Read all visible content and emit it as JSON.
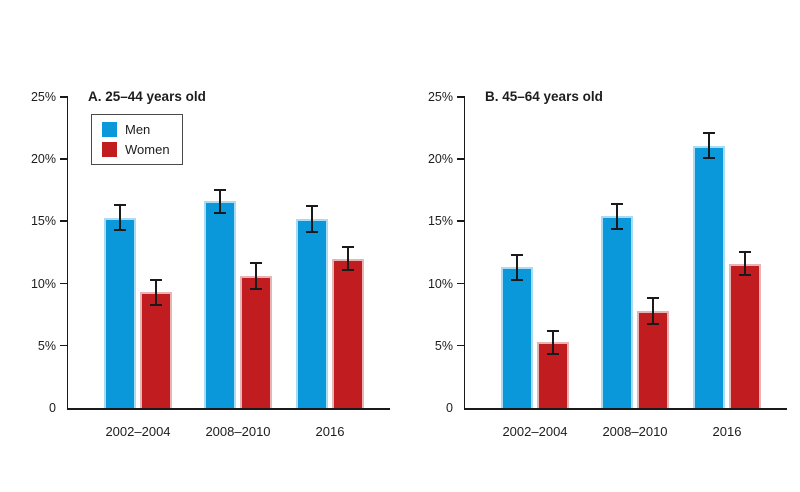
{
  "page": {
    "background": "#ffffff",
    "description": "Two-panel grouped bar chart comparing Men and Women percentages by age group over three periods"
  },
  "colors": {
    "men": "#0a98da",
    "women": "#c11d21",
    "men_edge": "#a9dcf3",
    "women_edge": "#e7b4b6",
    "axis": "#1a1a1a",
    "error_bar": "#1a1a1a",
    "text": "#1d1d1b",
    "legend_border": "#4a4a4a"
  },
  "chart_data": [
    {
      "type": "bar",
      "title": "A. 25–44 years old",
      "categories": [
        "2002–2004",
        "2008–2010",
        "2016"
      ],
      "series": [
        {
          "name": "Men",
          "color_key": "men",
          "values": [
            15.3,
            16.6,
            15.2
          ],
          "errors": [
            1.1,
            1.0,
            1.1
          ]
        },
        {
          "name": "Women",
          "color_key": "women",
          "values": [
            9.3,
            10.6,
            12.0
          ],
          "errors": [
            1.1,
            1.1,
            1.0
          ]
        }
      ],
      "ylim": [
        0,
        25
      ],
      "yticks": [
        {
          "value": 0,
          "label": "0"
        },
        {
          "value": 5,
          "label": "5%"
        },
        {
          "value": 10,
          "label": "10%"
        },
        {
          "value": 15,
          "label": "15%"
        },
        {
          "value": 20,
          "label": "20%"
        },
        {
          "value": 25,
          "label": "25%"
        }
      ],
      "grid": false,
      "legend": {
        "visible": true,
        "position": "upper-left",
        "entries": [
          "Men",
          "Women"
        ]
      }
    },
    {
      "type": "bar",
      "title": "B. 45–64 years old",
      "categories": [
        "2002–2004",
        "2008–2010",
        "2016"
      ],
      "series": [
        {
          "name": "Men",
          "color_key": "men",
          "values": [
            11.3,
            15.4,
            21.1
          ],
          "errors": [
            1.1,
            1.1,
            1.1
          ]
        },
        {
          "name": "Women",
          "color_key": "women",
          "values": [
            5.3,
            7.8,
            11.6
          ],
          "errors": [
            1.0,
            1.1,
            1.0
          ]
        }
      ],
      "ylim": [
        0,
        25
      ],
      "yticks": [
        {
          "value": 0,
          "label": "0"
        },
        {
          "value": 5,
          "label": "5%"
        },
        {
          "value": 10,
          "label": "10%"
        },
        {
          "value": 15,
          "label": "15%"
        },
        {
          "value": 20,
          "label": "20%"
        },
        {
          "value": 25,
          "label": "25%"
        }
      ],
      "grid": false,
      "legend": {
        "visible": false,
        "entries": []
      }
    }
  ]
}
